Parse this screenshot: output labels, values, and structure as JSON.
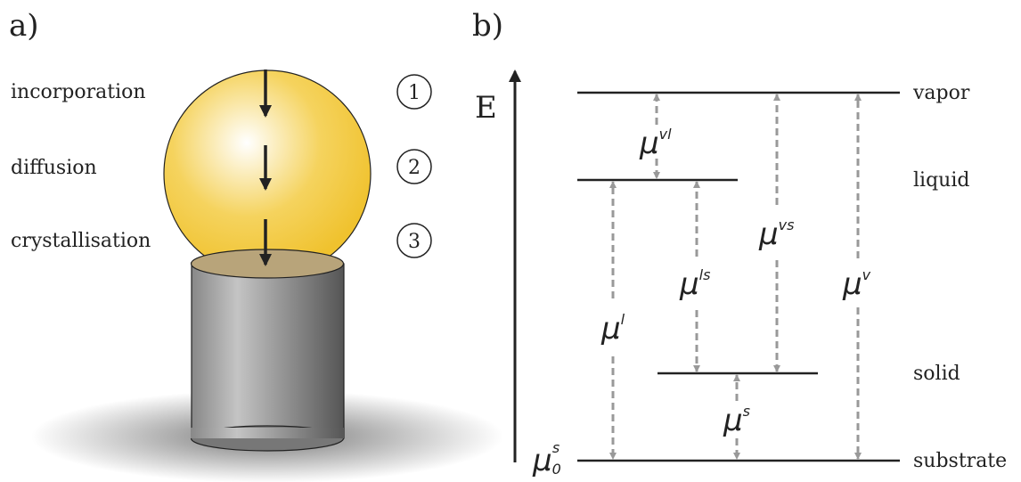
{
  "panel_a": {
    "label": "a)",
    "steps": [
      {
        "name": "incorporation",
        "number": "1"
      },
      {
        "name": "diffusion",
        "number": "2"
      },
      {
        "name": "crystallisation",
        "number": "3"
      }
    ]
  },
  "panel_b": {
    "label": "b)",
    "axis_label": "E",
    "levels": [
      "vapor",
      "liquid",
      "solid",
      "substrate"
    ],
    "potentials": [
      {
        "symbol": "μ",
        "superscript": "vl"
      },
      {
        "symbol": "μ",
        "superscript": "l"
      },
      {
        "symbol": "μ",
        "superscript": "ls"
      },
      {
        "symbol": "μ",
        "superscript": "vs"
      },
      {
        "symbol": "μ",
        "superscript": "v"
      },
      {
        "symbol": "μ",
        "superscript": "s"
      }
    ],
    "reference": {
      "symbol": "μ",
      "subscript": "0",
      "superscript": "s"
    }
  }
}
